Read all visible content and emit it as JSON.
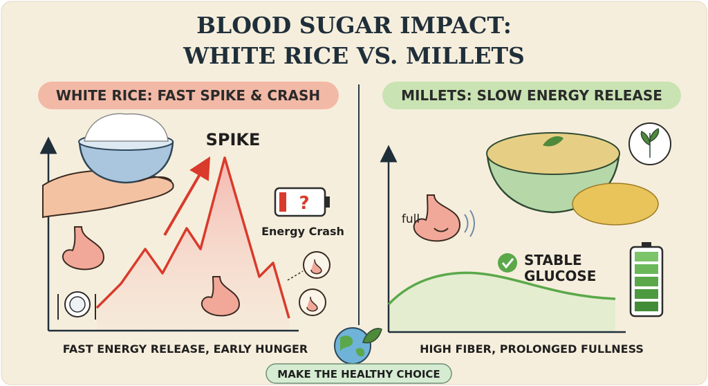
{
  "header": {
    "title_lines": [
      "BLOOD SUGAR IMPACT:",
      "WHITE RICE VS. MILLETS"
    ]
  },
  "left_panel": {
    "heading": "WHITE RICE: FAST SPIKE & CRASH",
    "spike_label": "SPIKE",
    "battery_symbol": "?",
    "crash_label": "Energy Crash",
    "caption": "FAST ENERGY RELEASE, EARLY HUNGER"
  },
  "right_panel": {
    "heading": "MILLETS: SLOW ENERGY RELEASE",
    "full_label": "full",
    "stable_lines": [
      "STABLE",
      "GLUCOSE"
    ],
    "caption": "HIGH FIBER, PROLONGED FULLNESS"
  },
  "footer": {
    "button": "MAKE THE HEALTHY CHOICE"
  }
}
